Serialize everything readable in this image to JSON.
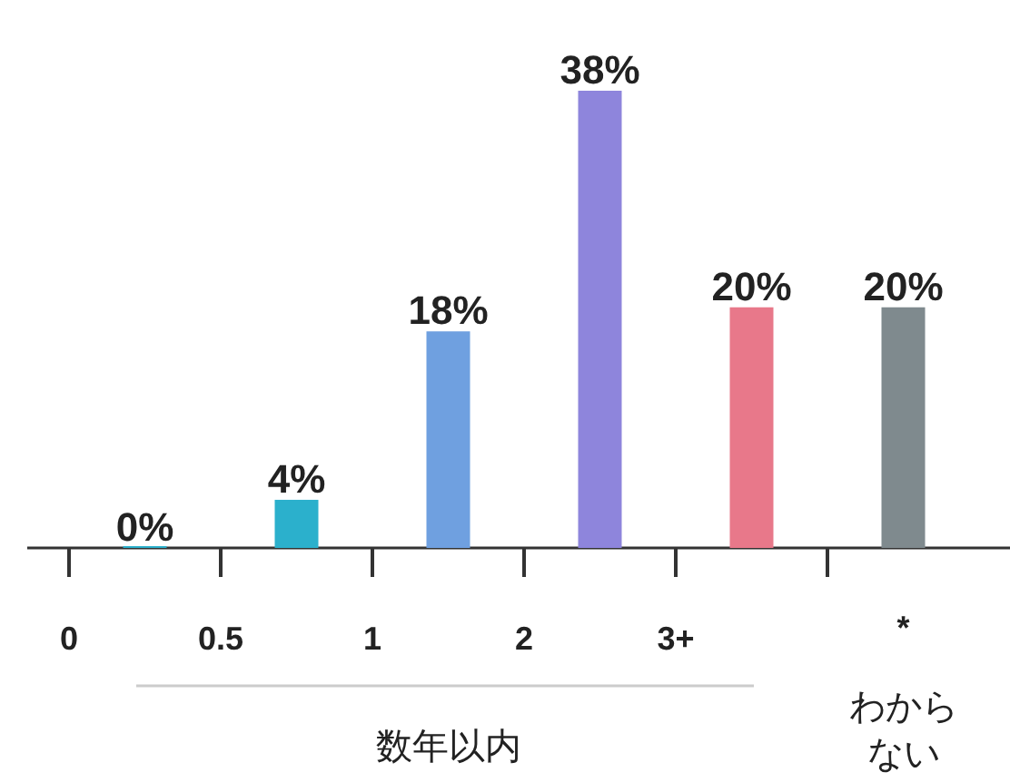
{
  "chart_data": {
    "type": "bar",
    "categories": [
      "0",
      "0.5",
      "1",
      "2",
      "3+",
      "*"
    ],
    "values": [
      0,
      4,
      18,
      38,
      20,
      20
    ],
    "colors": [
      "#2bb0cc",
      "#2bb0cc",
      "#6fa0e0",
      "#8e85dc",
      "#e8788a",
      "#7f8a8e"
    ],
    "value_labels": [
      "0%",
      "4%",
      "18%",
      "38%",
      "20%",
      "20%"
    ],
    "annotations": [
      "数年以内",
      "わからない"
    ]
  }
}
